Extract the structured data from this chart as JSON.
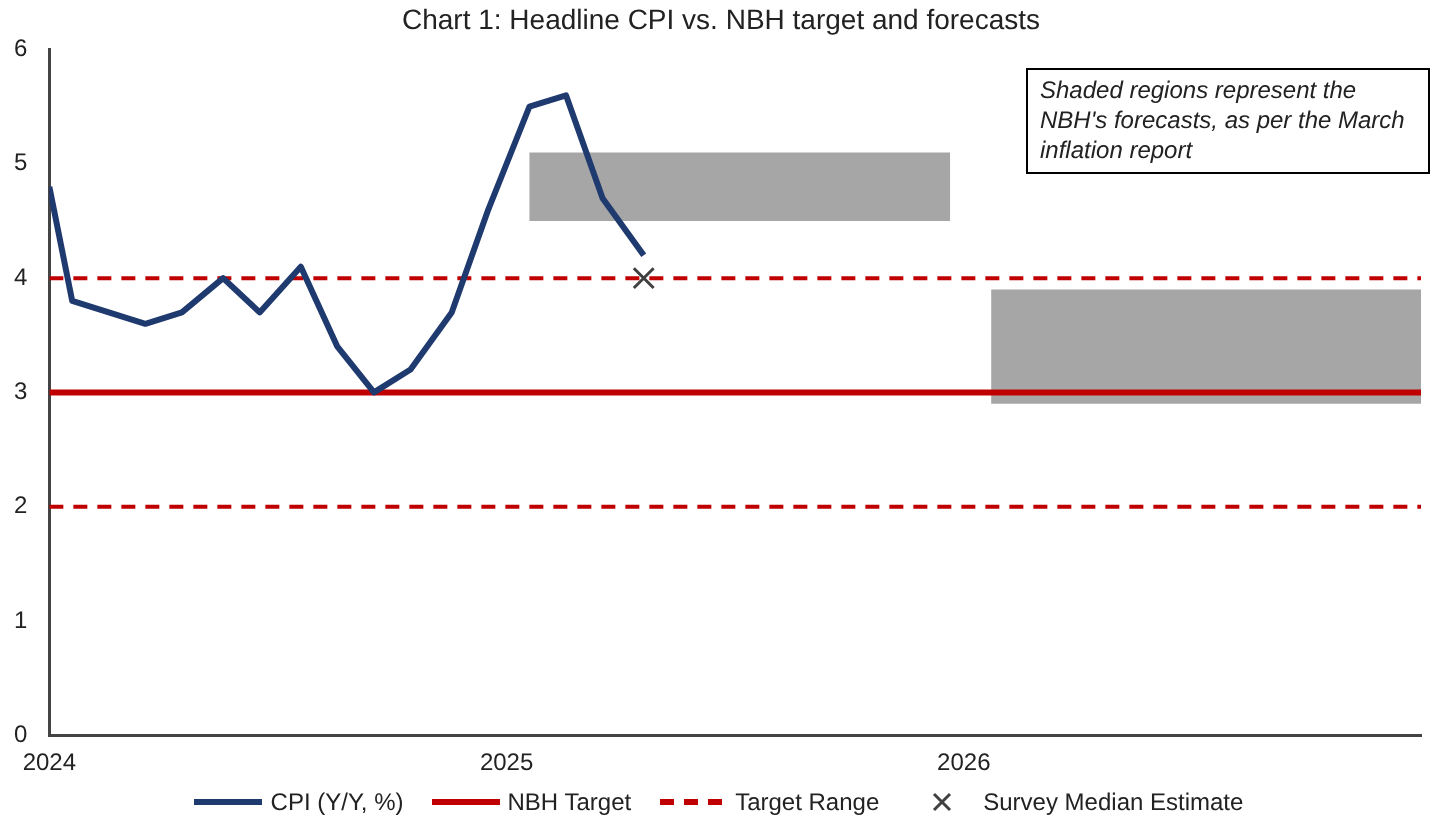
{
  "chart_data": {
    "type": "line",
    "title": "Chart 1: Headline CPI vs. NBH target and forecasts",
    "xlim": [
      2024,
      2027
    ],
    "xticks": [
      2024,
      2025,
      2026
    ],
    "ylim": [
      0,
      6
    ],
    "yticks": [
      0,
      1,
      2,
      3,
      4,
      5,
      6
    ],
    "grid": false,
    "legend": "bottom",
    "annotations": [
      "Shaded regions represent the NBH's forecasts, as per the March inflation report"
    ],
    "ref_lines": [
      {
        "axis": "y",
        "value": 3,
        "label": "NBH Target",
        "color": "#c00000",
        "line_style": "solid"
      },
      {
        "axis": "y",
        "value": 4,
        "label": "Target Range",
        "color": "#c00000",
        "line_style": "dashed"
      },
      {
        "axis": "y",
        "value": 2,
        "label": null,
        "color": "#c00000",
        "line_style": "dashed"
      }
    ],
    "series": [
      {
        "type": "area",
        "color": "#a6a6a6",
        "x": [
          2025.05,
          2025.97
        ],
        "values": [
          null,
          null
        ],
        "lower": [
          4.5,
          4.5
        ],
        "upper": [
          5.1,
          5.1
        ]
      },
      {
        "type": "area",
        "color": "#a6a6a6",
        "x": [
          2026.06,
          2027
        ],
        "values": [
          null,
          null
        ],
        "lower": [
          2.9,
          2.9
        ],
        "upper": [
          3.9,
          3.9
        ]
      },
      {
        "name": "CPI (Y/Y, %)",
        "color": "#1f3a6e",
        "line_style": "solid",
        "marker": "none",
        "x": [
          2024,
          2024.05,
          2024.13,
          2024.21,
          2024.29,
          2024.38,
          2024.46,
          2024.55,
          2024.63,
          2024.71,
          2024.79,
          2024.88,
          2024.96,
          2025.05,
          2025.13,
          2025.21,
          2025.3
        ],
        "values": [
          4.8,
          3.8,
          3.7,
          3.6,
          3.7,
          4.0,
          3.7,
          4.1,
          3.4,
          3.0,
          3.2,
          3.7,
          4.6,
          5.5,
          5.6,
          4.7,
          4.2
        ]
      },
      {
        "type": "scatter",
        "name": "Survey Median Estimate",
        "color": "#404040",
        "marker": "cross",
        "x": [
          2025.3
        ],
        "values": [
          4.0
        ]
      }
    ]
  }
}
